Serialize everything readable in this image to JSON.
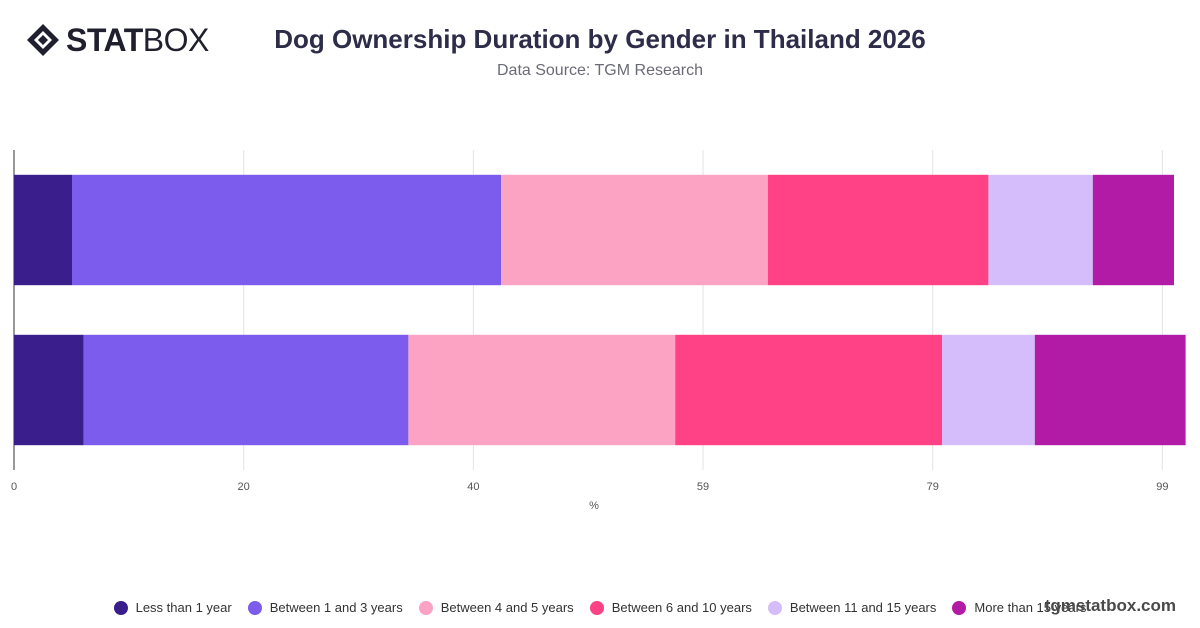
{
  "logo": {
    "text_bold": "STAT",
    "text_light": "BOX"
  },
  "header": {
    "title": "Dog Ownership Duration by Gender in Thailand 2026",
    "subtitle": "Data Source: TGM Research"
  },
  "watermark": "tgmstatbox.com",
  "chart_data": {
    "type": "bar",
    "orientation": "horizontal",
    "stacked": true,
    "title": "Dog Ownership Duration by Gender in Thailand 2026",
    "subtitle": "Data Source: TGM Research",
    "xlabel": "%",
    "ylabel": "",
    "xlim": [
      0,
      100
    ],
    "x_ticks": [
      "0",
      "20",
      "40",
      "59",
      "79",
      "99"
    ],
    "x_tick_values": [
      0,
      19.8,
      39.6,
      59.4,
      79.2,
      99
    ],
    "grid": true,
    "legend_position": "bottom",
    "categories": [
      "",
      ""
    ],
    "series": [
      {
        "name": "Less than 1 year",
        "color": "#3a1f8c",
        "values": [
          5,
          6
        ]
      },
      {
        "name": "Between 1 and 3 years",
        "color": "#7b5cec",
        "values": [
          37,
          28
        ]
      },
      {
        "name": "Between 4 and 5 years",
        "color": "#fca3c3",
        "values": [
          23,
          23
        ]
      },
      {
        "name": "Between 6 and 10 years",
        "color": "#ff4185",
        "values": [
          19,
          23
        ]
      },
      {
        "name": "Between 11 and 15 years",
        "color": "#d4bdfa",
        "values": [
          9,
          8
        ]
      },
      {
        "name": "More than 15 years",
        "color": "#b21ba5",
        "values": [
          7,
          13
        ]
      }
    ]
  }
}
